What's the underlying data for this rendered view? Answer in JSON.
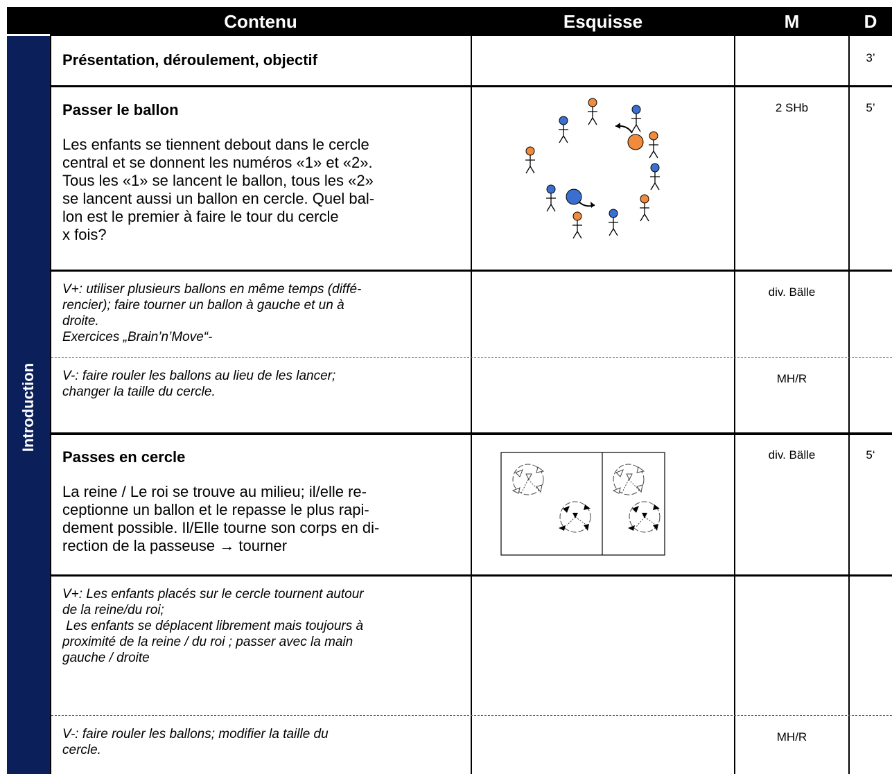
{
  "header": {
    "columns": [
      "Contenu",
      "Esquisse",
      "M",
      "D"
    ]
  },
  "section": "Introduction",
  "rows": [
    {
      "title": "Présentation, déroulement, objectif",
      "d": "3’"
    },
    {
      "title": "Passer le ballon",
      "lines": [
        "Les enfants se tiennent debout dans le cercle",
        "central et se donnent les numéros «1» et «2».",
        "Tous les «1» se lancent le ballon, tous les «2»",
        "se lancent aussi un ballon en cercle. Quel bal-",
        "lon est le premier à faire le tour du cercle",
        "x fois?"
      ],
      "m": "2 SHb",
      "d": "5’"
    },
    {
      "italic_lines": [
        "V+: utiliser plusieurs ballons en même temps (diffé-",
        "rencier); faire tourner un ballon à gauche et un à",
        "droite.",
        "Exercices „Brain’n’Move“-"
      ],
      "m": "div. Bälle"
    },
    {
      "italic_lines": [
        "V-: faire rouler les ballons au lieu de les lancer;",
        "changer la taille du cercle."
      ],
      "m": "MH/R"
    },
    {
      "title": "Passes en cercle",
      "lines": [
        "La reine / Le roi se trouve au milieu; il/elle re-",
        "ceptionne un ballon et le repasse le plus rapi-",
        "dement possible. Il/Elle tourne son corps en di-",
        "rection de la passeuse → tourner"
      ],
      "m": "div. Bälle",
      "d": "5‘"
    },
    {
      "italic_lines": [
        "V+: Les enfants placés sur le cercle tournent autour",
        "de la reine/du roi;",
        " Les enfants se déplacent librement mais toujours à",
        "proximité de la reine / du roi ; passer avec la main",
        "gauche / droite"
      ]
    },
    {
      "italic_lines": [
        "V-: faire rouler les ballons; modifier la taille du",
        "cercle."
      ],
      "m": "MH/R"
    }
  ]
}
